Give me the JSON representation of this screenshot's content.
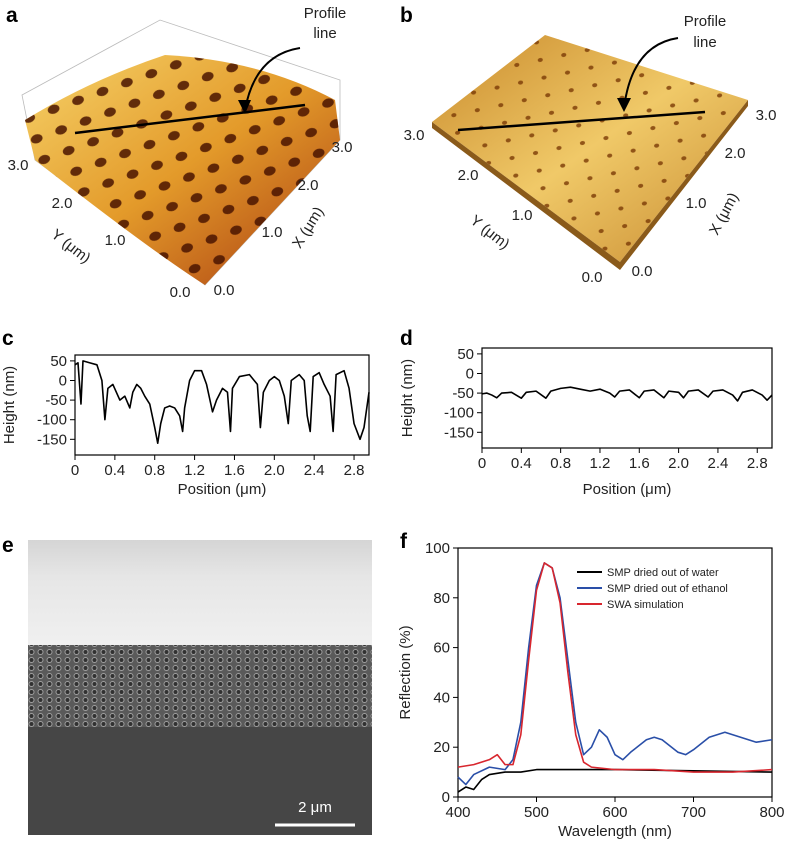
{
  "images": [
    {
      "panel_label": "a",
      "annotation": [
        "Profile",
        "line"
      ],
      "x_ticks": [
        "0.0",
        "1.0",
        "2.0",
        "3.0"
      ],
      "y_ticks": [
        "0.0",
        "1.0",
        "2.0",
        "3.0"
      ],
      "x_label": "X (μm)",
      "y_label": "Y (μm)"
    },
    {
      "panel_label": "b",
      "annotation": [
        "Profile",
        "line"
      ],
      "x_ticks": [
        "0.0",
        "1.0",
        "2.0",
        "3.0"
      ],
      "y_ticks": [
        "0.0",
        "1.0",
        "2.0",
        "3.0"
      ],
      "x_label": "X (μm)",
      "y_label": "Y (μm)"
    },
    {
      "panel_label": "e",
      "scale_bar": "2 μm"
    }
  ],
  "chart_data": [
    {
      "type": "line",
      "panel_label": "c",
      "x_label": "Position (μm)",
      "y_label": "Height (nm)",
      "xlim": [
        0,
        2.95
      ],
      "ylim": [
        -190,
        65
      ],
      "xticks": [
        0,
        0.4,
        0.8,
        1.2,
        1.6,
        {
          "value": 2,
          "label": "2.0"
        },
        2.4,
        2.8
      ],
      "yticks": [
        50,
        0,
        -50,
        -100,
        -150
      ],
      "series": [
        {
          "color": "#000000",
          "x": [
            0,
            0.03,
            0.06,
            0.08,
            0.15,
            0.22,
            0.27,
            0.3,
            0.33,
            0.38,
            0.45,
            0.5,
            0.55,
            0.58,
            0.62,
            0.66,
            0.7,
            0.75,
            0.8,
            0.83,
            0.86,
            0.9,
            0.95,
            1.0,
            1.05,
            1.08,
            1.1,
            1.15,
            1.2,
            1.27,
            1.32,
            1.38,
            1.42,
            1.48,
            1.53,
            1.56,
            1.58,
            1.65,
            1.75,
            1.83,
            1.86,
            1.89,
            1.95,
            2.0,
            2.05,
            2.1,
            2.14,
            2.17,
            2.25,
            2.3,
            2.33,
            2.36,
            2.39,
            2.45,
            2.5,
            2.56,
            2.59,
            2.62,
            2.7,
            2.75,
            2.8,
            2.86,
            2.9,
            2.95
          ],
          "values": [
            40,
            45,
            -60,
            50,
            45,
            40,
            0,
            -100,
            -20,
            -10,
            -50,
            -40,
            -70,
            -30,
            -10,
            -20,
            -40,
            -60,
            -120,
            -160,
            -110,
            -70,
            -65,
            -70,
            -90,
            -130,
            -70,
            0,
            25,
            25,
            -10,
            -80,
            -50,
            -20,
            -30,
            -130,
            -20,
            10,
            15,
            -10,
            -120,
            -30,
            0,
            10,
            0,
            -40,
            -110,
            0,
            15,
            0,
            -90,
            -130,
            10,
            20,
            -10,
            -40,
            -130,
            15,
            25,
            -20,
            -110,
            -150,
            -120,
            -30
          ]
        }
      ]
    },
    {
      "type": "line",
      "panel_label": "d",
      "x_label": "Position (μm)",
      "y_label": "Height (nm)",
      "xlim": [
        0,
        2.95
      ],
      "ylim": [
        -190,
        65
      ],
      "xticks": [
        0,
        0.4,
        0.8,
        1.2,
        1.6,
        {
          "value": 2,
          "label": "2.0"
        },
        2.4,
        2.8
      ],
      "yticks": [
        50,
        0,
        -50,
        -100,
        -150
      ],
      "series": [
        {
          "color": "#000000",
          "x": [
            0,
            0.05,
            0.1,
            0.15,
            0.2,
            0.3,
            0.4,
            0.45,
            0.55,
            0.65,
            0.7,
            0.8,
            0.9,
            1.0,
            1.1,
            1.2,
            1.3,
            1.35,
            1.4,
            1.5,
            1.6,
            1.65,
            1.75,
            1.85,
            1.9,
            2.0,
            2.05,
            2.1,
            2.2,
            2.3,
            2.35,
            2.45,
            2.55,
            2.6,
            2.65,
            2.75,
            2.85,
            2.9,
            2.95
          ],
          "values": [
            -52,
            -50,
            -55,
            -62,
            -50,
            -48,
            -63,
            -48,
            -45,
            -63,
            -45,
            -38,
            -35,
            -40,
            -45,
            -40,
            -50,
            -60,
            -45,
            -42,
            -62,
            -45,
            -42,
            -62,
            -45,
            -48,
            -62,
            -45,
            -42,
            -60,
            -45,
            -42,
            -55,
            -70,
            -48,
            -42,
            -55,
            -68,
            -55
          ]
        }
      ]
    },
    {
      "type": "line",
      "panel_label": "f",
      "x_label": "Wavelength (nm)",
      "y_label": "Reflection (%)",
      "xlim": [
        400,
        800
      ],
      "ylim": [
        0,
        100
      ],
      "xticks": [
        400,
        500,
        600,
        700,
        800
      ],
      "yticks": [
        0,
        20,
        40,
        60,
        80,
        100
      ],
      "series": [
        {
          "name": "SMP dried out of water",
          "color": "#000000",
          "x": [
            400,
            410,
            420,
            430,
            440,
            460,
            480,
            500,
            550,
            600,
            700,
            800
          ],
          "values": [
            2,
            4,
            3,
            7,
            9,
            10,
            10,
            11,
            11,
            11,
            10.5,
            10
          ]
        },
        {
          "name": "SMP dried out of ethanol",
          "color": "#2a4fa8",
          "x": [
            400,
            410,
            420,
            440,
            460,
            470,
            480,
            490,
            500,
            510,
            520,
            530,
            540,
            550,
            560,
            570,
            580,
            590,
            600,
            610,
            620,
            640,
            650,
            660,
            680,
            690,
            700,
            720,
            740,
            760,
            780,
            800
          ],
          "values": [
            8,
            5,
            9,
            12,
            11,
            15,
            30,
            60,
            85,
            94,
            92,
            80,
            55,
            30,
            17,
            20,
            27,
            24,
            17,
            15,
            18,
            23,
            24,
            23,
            18,
            17,
            19,
            24,
            26,
            24,
            22,
            23
          ]
        },
        {
          "name": "SWA simulation",
          "color": "#d8262e",
          "x": [
            400,
            420,
            440,
            450,
            460,
            470,
            480,
            490,
            500,
            510,
            520,
            530,
            540,
            550,
            560,
            570,
            600,
            650,
            700,
            750,
            800
          ],
          "values": [
            12,
            13,
            15,
            17,
            13,
            13,
            25,
            55,
            83,
            94,
            92,
            78,
            50,
            25,
            14,
            12,
            11,
            11,
            10,
            10,
            11
          ]
        }
      ]
    }
  ]
}
